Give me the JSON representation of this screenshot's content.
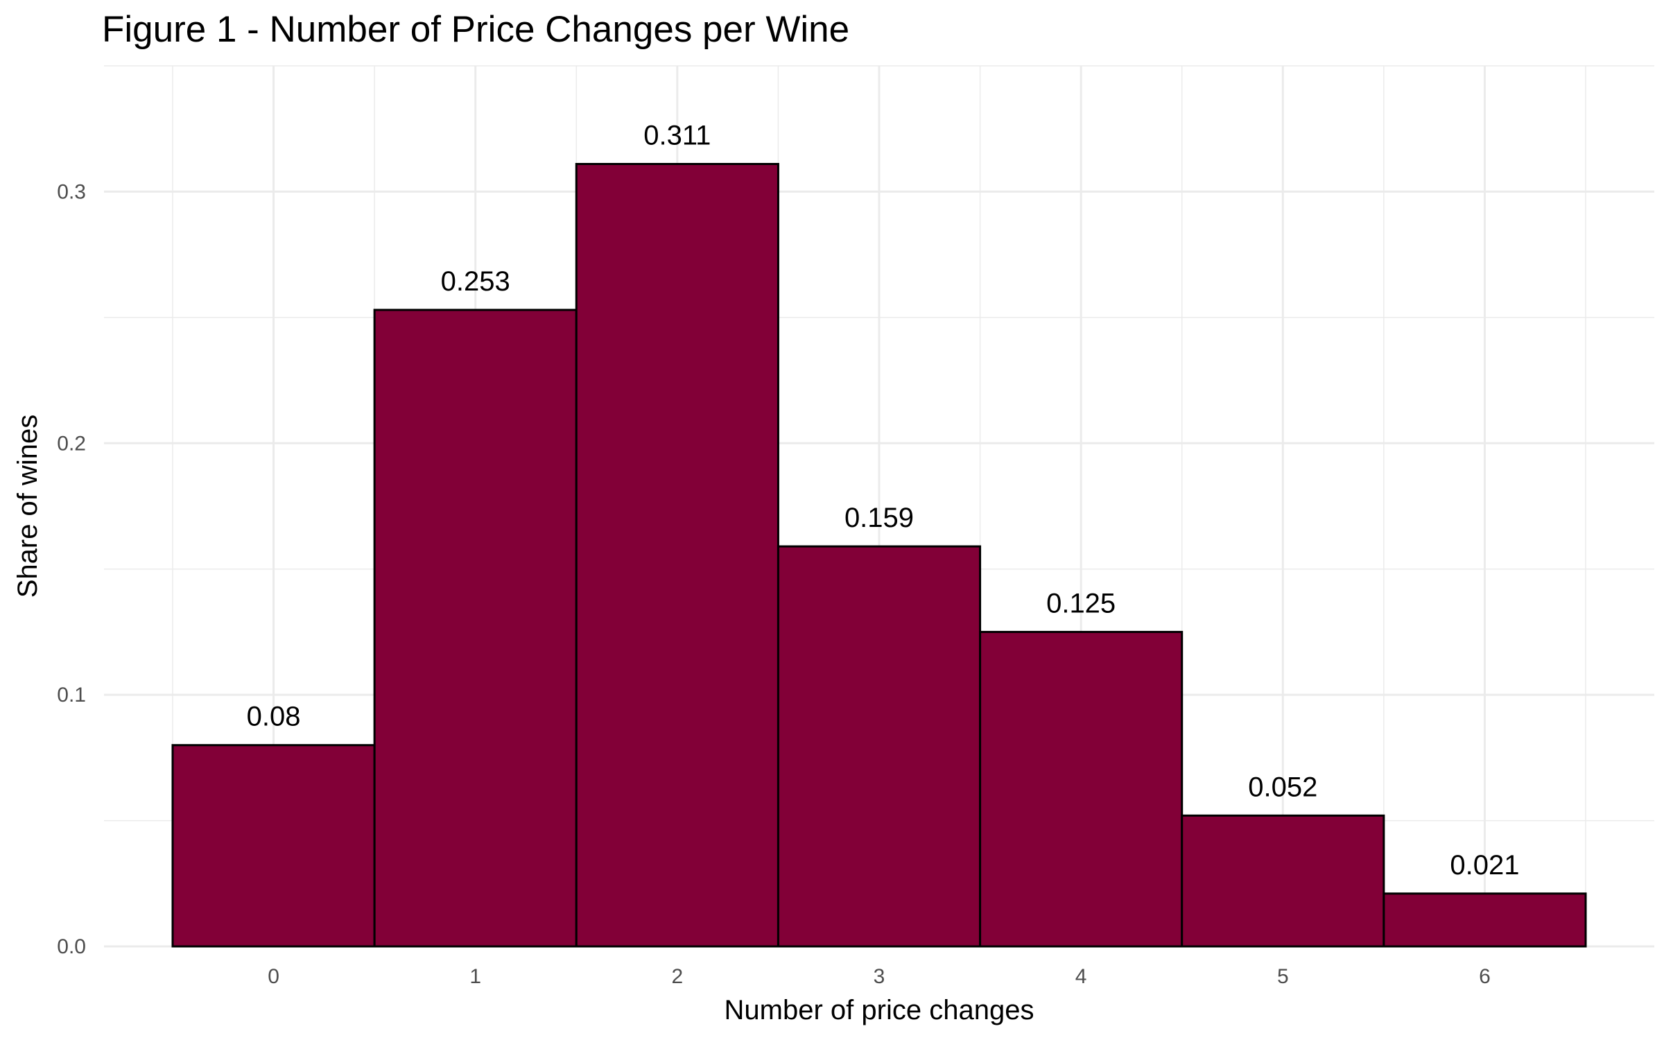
{
  "chart_data": {
    "type": "bar",
    "title": "Figure 1 - Number of Price Changes per Wine",
    "xlabel": "Number of price changes",
    "ylabel": "Share of wines",
    "categories": [
      "0",
      "1",
      "2",
      "3",
      "4",
      "5",
      "6"
    ],
    "values": [
      0.08,
      0.253,
      0.311,
      0.159,
      0.125,
      0.052,
      0.021
    ],
    "data_labels": [
      "0.08",
      "0.253",
      "0.311",
      "0.159",
      "0.125",
      "0.052",
      "0.021"
    ],
    "y_ticks": [
      0.0,
      0.1,
      0.2,
      0.3
    ],
    "y_tick_labels": [
      "0.0",
      "0.1",
      "0.2",
      "0.3"
    ],
    "ylim": [
      0,
      0.35
    ],
    "xlim": [
      -0.84,
      6.84
    ],
    "grid": true,
    "legend": "none",
    "bar_color": "#820037",
    "bar_outline": "#000000",
    "grid_color": "#ebebeb"
  }
}
